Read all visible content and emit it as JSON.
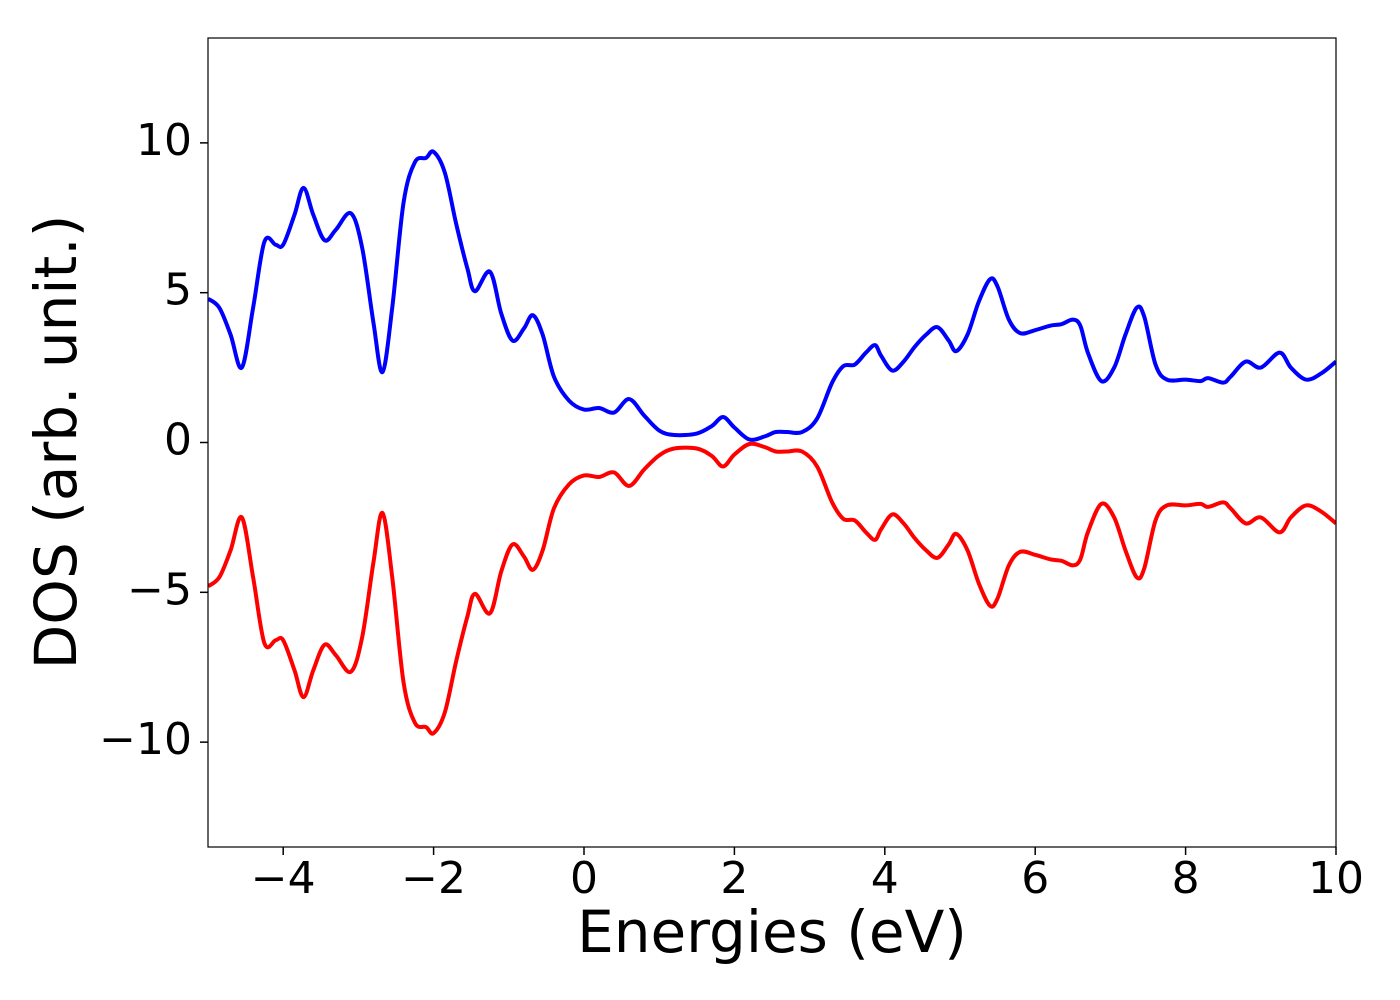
{
  "chart_data": {
    "type": "line",
    "xlabel": "Energies (eV)",
    "ylabel": "DOS (arb. unit.)",
    "x": [
      -5,
      -4.85,
      -4.7,
      -4.55,
      -4.4,
      -4.25,
      -4.1,
      -4,
      -3.85,
      -3.73,
      -3.6,
      -3.45,
      -3.3,
      -3.1,
      -2.95,
      -2.8,
      -2.68,
      -2.55,
      -2.4,
      -2.25,
      -2.1,
      -2,
      -1.85,
      -1.7,
      -1.55,
      -1.45,
      -1.25,
      -1.1,
      -0.95,
      -0.8,
      -0.68,
      -0.55,
      -0.4,
      -0.2,
      0,
      0.2,
      0.4,
      0.6,
      0.8,
      1,
      1.2,
      1.5,
      1.7,
      1.85,
      2,
      2.2,
      2.4,
      2.55,
      2.7,
      2.9,
      3.1,
      3.3,
      3.45,
      3.6,
      3.75,
      3.87,
      3.95,
      4.1,
      4.25,
      4.4,
      4.55,
      4.7,
      4.85,
      4.95,
      5.1,
      5.25,
      5.4,
      5.5,
      5.65,
      5.8,
      6,
      6.2,
      6.35,
      6.5,
      6.6,
      6.7,
      6.88,
      7.05,
      7.2,
      7.35,
      7.45,
      7.6,
      7.75,
      8,
      8.2,
      8.3,
      8.5,
      8.6,
      8.8,
      9,
      9.25,
      9.4,
      9.6,
      9.8,
      10
    ],
    "series": [
      {
        "color": "#0000ff",
        "values": [
          4.8,
          4.5,
          3.6,
          2.5,
          4.5,
          6.7,
          6.6,
          6.6,
          7.6,
          8.5,
          7.6,
          6.75,
          7.1,
          7.65,
          6.5,
          4.0,
          2.35,
          4.5,
          8.0,
          9.35,
          9.5,
          9.7,
          9.0,
          7.3,
          5.8,
          5.05,
          5.7,
          4.3,
          3.4,
          3.8,
          4.25,
          3.6,
          2.2,
          1.4,
          1.1,
          1.15,
          1.0,
          1.45,
          0.9,
          0.4,
          0.25,
          0.3,
          0.55,
          0.85,
          0.5,
          0.1,
          0.2,
          0.35,
          0.35,
          0.35,
          0.8,
          2.0,
          2.55,
          2.6,
          3.0,
          3.25,
          2.9,
          2.4,
          2.7,
          3.2,
          3.6,
          3.85,
          3.4,
          3.05,
          3.6,
          4.7,
          5.45,
          5.2,
          4.1,
          3.65,
          3.75,
          3.9,
          3.95,
          4.1,
          3.9,
          3.0,
          2.05,
          2.5,
          3.6,
          4.5,
          4.2,
          2.6,
          2.1,
          2.1,
          2.05,
          2.15,
          2.0,
          2.2,
          2.7,
          2.5,
          3.0,
          2.5,
          2.1,
          2.3,
          2.7
        ]
      },
      {
        "color": "#ff0000",
        "values": [
          -4.8,
          -4.5,
          -3.6,
          -2.5,
          -4.5,
          -6.7,
          -6.6,
          -6.6,
          -7.6,
          -8.5,
          -7.6,
          -6.75,
          -7.1,
          -7.65,
          -6.5,
          -4.0,
          -2.35,
          -4.5,
          -8.0,
          -9.35,
          -9.5,
          -9.7,
          -9.0,
          -7.3,
          -5.8,
          -5.05,
          -5.7,
          -4.3,
          -3.4,
          -3.8,
          -4.25,
          -3.6,
          -2.2,
          -1.4,
          -1.1,
          -1.15,
          -1.0,
          -1.45,
          -0.9,
          -0.43,
          -0.2,
          -0.2,
          -0.45,
          -0.8,
          -0.4,
          -0.05,
          -0.15,
          -0.3,
          -0.3,
          -0.3,
          -0.8,
          -2.0,
          -2.55,
          -2.6,
          -3.0,
          -3.25,
          -2.9,
          -2.4,
          -2.7,
          -3.2,
          -3.6,
          -3.85,
          -3.4,
          -3.05,
          -3.6,
          -4.7,
          -5.45,
          -5.2,
          -4.1,
          -3.65,
          -3.75,
          -3.9,
          -3.95,
          -4.1,
          -3.9,
          -3.0,
          -2.05,
          -2.5,
          -3.6,
          -4.5,
          -4.2,
          -2.6,
          -2.1,
          -2.1,
          -2.05,
          -2.15,
          -2.0,
          -2.2,
          -2.7,
          -2.5,
          -3.0,
          -2.5,
          -2.1,
          -2.3,
          -2.7
        ]
      }
    ],
    "xlim": [
      -5,
      10
    ],
    "xticks": [
      {
        "value": -4,
        "label": "−4"
      },
      {
        "value": -2,
        "label": "−2"
      },
      0,
      2,
      4,
      6,
      8,
      10
    ],
    "ylim": [
      -13.5,
      13.5
    ],
    "yticks": [
      {
        "value": -10,
        "label": "−10"
      },
      {
        "value": -5,
        "label": "−5"
      },
      0,
      5,
      10
    ],
    "grid": false
  }
}
